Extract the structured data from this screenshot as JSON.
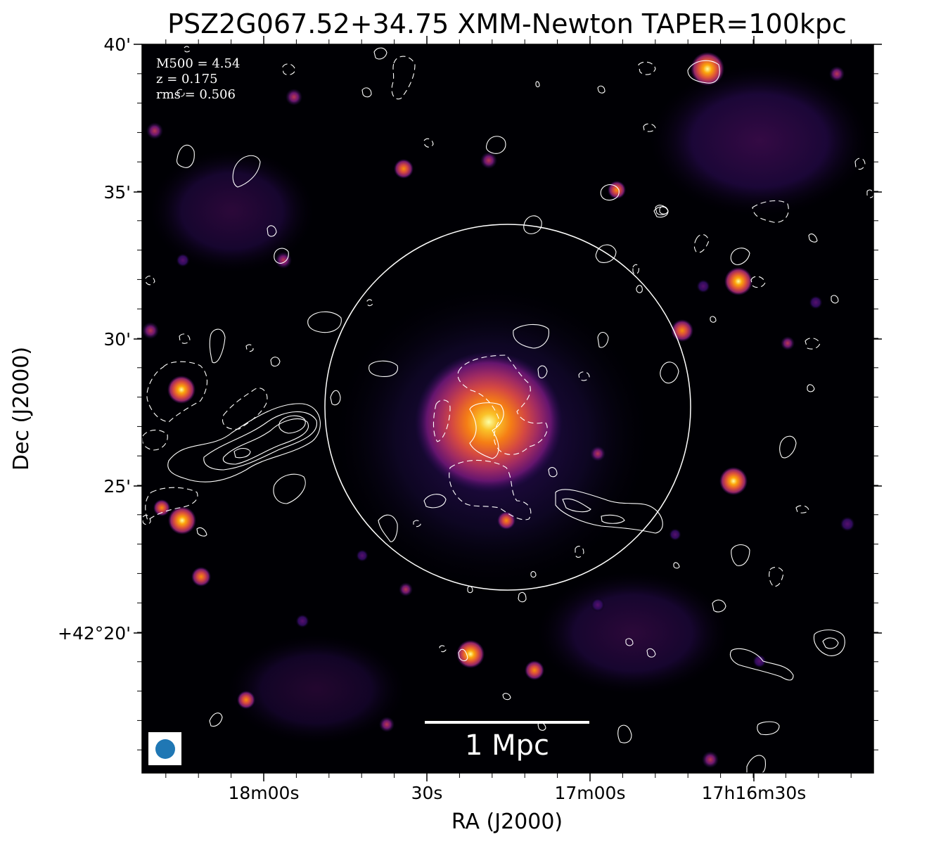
{
  "title": "PSZ2G067.52+34.75 XMM-Newton TAPER=100kpc",
  "annotations": {
    "m500": "M500 = 4.54",
    "z": "z = 0.175",
    "rms": "rms = 0.506"
  },
  "scale_bar": {
    "label": "1 Mpc"
  },
  "axes": {
    "xlabel": "RA (J2000)",
    "ylabel": "Dec (J2000)",
    "x_ticks": [
      "18m00s",
      "30s",
      "17m00s",
      "17h16m30s"
    ],
    "y_ticks": [
      "40'",
      "35'",
      "30'",
      "25'",
      "+42°20'"
    ]
  },
  "colors": {
    "background": "#000004",
    "contour": "#ffffff",
    "beam": "#1f77b4",
    "colormap": "inferno"
  }
}
